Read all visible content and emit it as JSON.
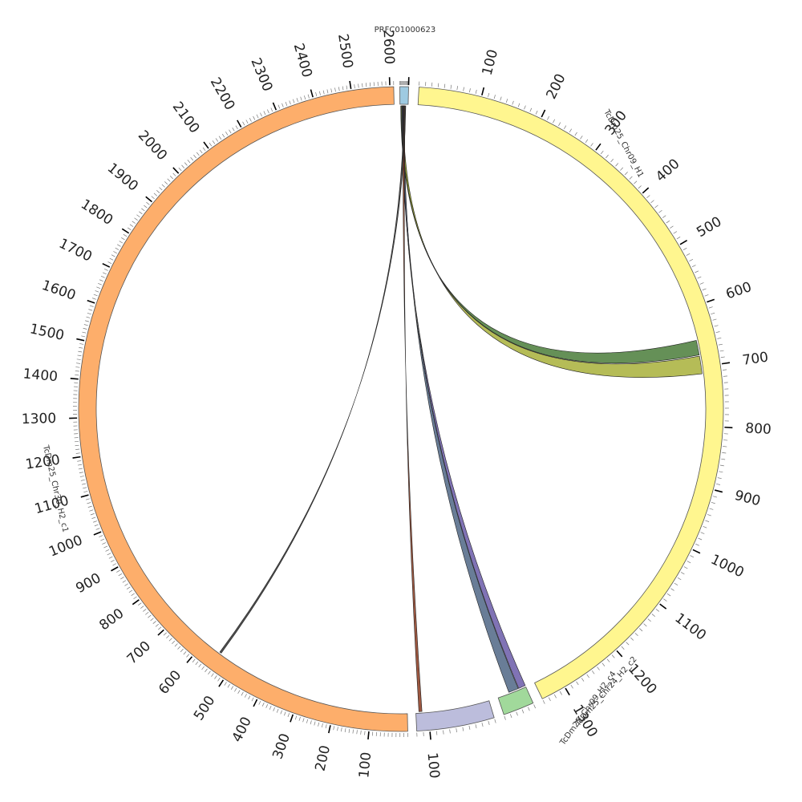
{
  "segments": [
    {
      "id": "seg0",
      "name": "PRFC01000623",
      "color": "#9ecae1",
      "length": 100,
      "ticks": []
    },
    {
      "id": "seg1",
      "name": "TcDm25_Chr09_H1",
      "color": "#fff68f",
      "length": 1340,
      "ticks": [
        "100",
        "200",
        "300",
        "400",
        "500",
        "600",
        "700",
        "800",
        "900",
        "1000",
        "1100",
        "1200",
        "1300"
      ]
    },
    {
      "id": "seg2",
      "name": "TcDm25_Chr09_H2_c4",
      "color": "#a1d99b",
      "length": 50,
      "ticks": []
    },
    {
      "id": "seg3",
      "name": "TcDm25_Chr24_H2_c2",
      "color": "#bcbddc",
      "length": 120,
      "ticks": [
        "100"
      ]
    },
    {
      "id": "seg4",
      "name": "TcDm25_Chr30_H2_c1",
      "color": "#fdae6b",
      "length": 2610,
      "ticks": [
        "100",
        "200",
        "300",
        "400",
        "500",
        "600",
        "700",
        "800",
        "900",
        "1000",
        "1100",
        "1200",
        "1300",
        "1400",
        "1500",
        "1600",
        "1700",
        "1800",
        "1900",
        "2000",
        "2100",
        "2200",
        "2300",
        "2400",
        "2500",
        "2600"
      ]
    }
  ],
  "links": [
    {
      "from": "PRFC01000623",
      "to": "TcDm25_Chr09_H1",
      "to_range": [
        655,
        680
      ],
      "color": "#4a7c3a"
    },
    {
      "from": "PRFC01000623",
      "to": "TcDm25_Chr09_H1",
      "to_range": [
        682,
        712
      ],
      "color": "#a8b03a"
    },
    {
      "from": "PRFC01000623",
      "to": "TcDm25_Chr09_H2_c4",
      "to_range": [
        0,
        12
      ],
      "color": "#6a5aa8"
    },
    {
      "from": "PRFC01000623",
      "to": "TcDm25_Chr09_H2_c4",
      "to_range": [
        13,
        30
      ],
      "color": "#4f6685"
    },
    {
      "from": "PRFC01000623",
      "to": "TcDm25_Chr24_H2_c2",
      "to_range": [
        110,
        115
      ],
      "color": "#8b3a1e"
    },
    {
      "from": "PRFC01000623",
      "to": "TcDm25_Chr30_H2_c1",
      "to_range": [
        545,
        550
      ],
      "color": "#333333"
    }
  ]
}
